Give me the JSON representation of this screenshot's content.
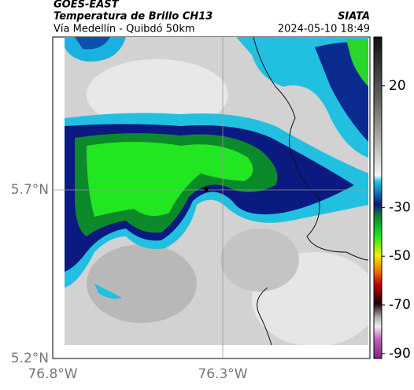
{
  "header": {
    "source": "GOES-EAST",
    "title": "Temperatura de Brillo CH13",
    "brand": "SIATA",
    "subtitle": "Vía Medellín - Quibdó 50km",
    "timestamp": "2024-05-10 18:49"
  },
  "axes": {
    "lat_labels": [
      "5.7°N",
      "5.2°N"
    ],
    "lon_labels": [
      "76.8°W",
      "76.3°W"
    ]
  },
  "colorbar": {
    "range": [
      -92,
      40
    ],
    "ticks": [
      20,
      -30,
      -50,
      -70,
      -90
    ]
  }
}
